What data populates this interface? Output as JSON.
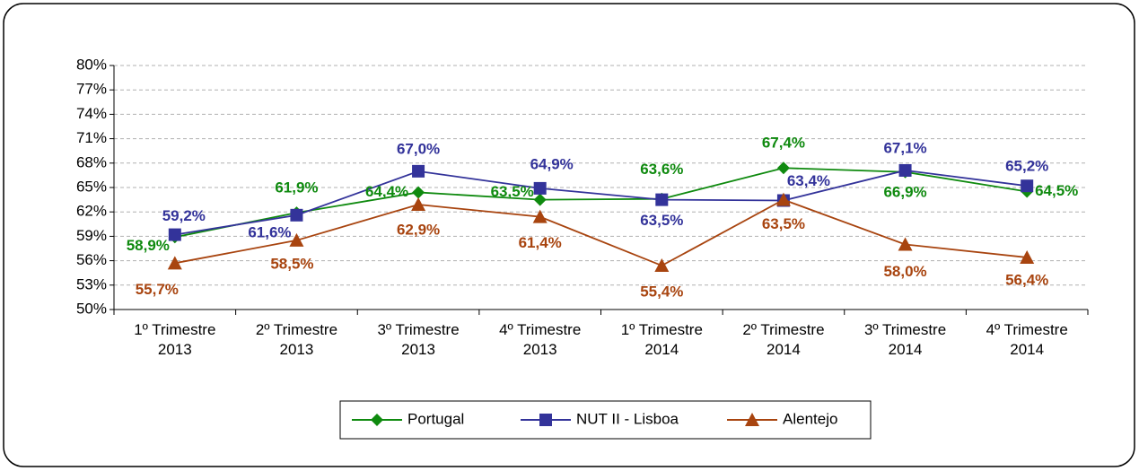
{
  "chart_data": {
    "type": "line",
    "categories": [
      "1º Trimestre 2013",
      "2º Trimestre 2013",
      "3º Trimestre 2013",
      "4º Trimestre 2013",
      "1º Trimestre 2014",
      "2º Trimestre 2014",
      "3º Trimestre 2014",
      "4º Trimestre 2014"
    ],
    "series": [
      {
        "name": "Portugal",
        "color": "#0f8a0f",
        "marker": "diamond",
        "values": [
          58.9,
          61.9,
          64.4,
          63.5,
          63.6,
          67.4,
          66.9,
          64.5
        ],
        "value_labels": [
          "58,9%",
          "61,9%",
          "64,4%",
          "63,5%",
          "63,6%",
          "67,4%",
          "66,9%",
          "64,5%"
        ]
      },
      {
        "name": "NUT II - Lisboa",
        "color": "#33339a",
        "marker": "square",
        "values": [
          59.2,
          61.6,
          67.0,
          64.9,
          63.5,
          63.4,
          67.1,
          65.2
        ],
        "value_labels": [
          "59,2%",
          "61,6%",
          "67,0%",
          "64,9%",
          "63,5%",
          "63,4%",
          "67,1%",
          "65,2%"
        ]
      },
      {
        "name": "Alentejo",
        "color": "#a8440f",
        "marker": "triangle",
        "values": [
          55.7,
          58.5,
          62.9,
          61.4,
          55.4,
          63.5,
          58.0,
          56.4
        ],
        "value_labels": [
          "55,7%",
          "58,5%",
          "62,9%",
          "61,4%",
          "55,4%",
          "63,5%",
          "58,0%",
          "56,4%"
        ]
      }
    ],
    "ylim": [
      50,
      80
    ],
    "yticks": [
      {
        "value": 50,
        "label": "50%"
      },
      {
        "value": 53,
        "label": "53%"
      },
      {
        "value": 56,
        "label": "56%"
      },
      {
        "value": 59,
        "label": "59%"
      },
      {
        "value": 62,
        "label": "62%"
      },
      {
        "value": 65,
        "label": "65%"
      },
      {
        "value": 68,
        "label": "68%"
      },
      {
        "value": 71,
        "label": "71%"
      },
      {
        "value": 74,
        "label": "74%"
      },
      {
        "value": 77,
        "label": "77%"
      },
      {
        "value": 80,
        "label": "80%"
      }
    ],
    "grid": true,
    "legend": "bottom"
  }
}
